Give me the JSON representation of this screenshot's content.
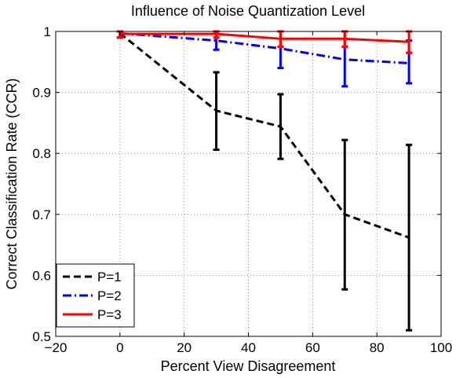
{
  "chart_data": {
    "type": "line",
    "title": "Influence of Noise Quantization Level",
    "xlabel": "Percent View Disagreement",
    "ylabel": "Correct Classification Rate (CCR)",
    "xlim": [
      -20,
      100
    ],
    "ylim": [
      0.5,
      1.0
    ],
    "xticks": [
      -20,
      0,
      20,
      40,
      60,
      80,
      100
    ],
    "xtick_labels": [
      "−20",
      "0",
      "20",
      "40",
      "60",
      "80",
      "100"
    ],
    "yticks": [
      0.5,
      0.6,
      0.7,
      0.8,
      0.9,
      1.0
    ],
    "ytick_labels": [
      "0.5",
      "0.6",
      "0.7",
      "0.8",
      "0.9",
      "1"
    ],
    "grid": true,
    "legend_position": "bottom-left",
    "x": [
      0,
      30,
      50,
      70,
      90
    ],
    "series": [
      {
        "name": "P=1",
        "color": "#000000",
        "style": "dashed",
        "values": [
          0.997,
          0.87,
          0.844,
          0.7,
          0.662
        ],
        "err_low": [
          0.99,
          0.806,
          0.791,
          0.577,
          0.51
        ],
        "err_high": [
          1.0,
          0.933,
          0.897,
          0.822,
          0.814
        ]
      },
      {
        "name": "P=2",
        "color": "#0000ff",
        "style": "dashdot",
        "values": [
          0.997,
          0.985,
          0.972,
          0.954,
          0.948
        ],
        "err_low": [
          0.99,
          0.97,
          0.94,
          0.91,
          0.915
        ],
        "err_high": [
          1.0,
          1.0,
          1.0,
          1.0,
          0.985
        ]
      },
      {
        "name": "P=3",
        "color": "#ff0000",
        "style": "solid",
        "values": [
          0.996,
          0.996,
          0.988,
          0.988,
          0.983
        ],
        "err_low": [
          0.99,
          0.99,
          0.975,
          0.975,
          0.965
        ],
        "err_high": [
          1.0,
          1.0,
          1.0,
          1.0,
          1.0
        ]
      }
    ]
  }
}
